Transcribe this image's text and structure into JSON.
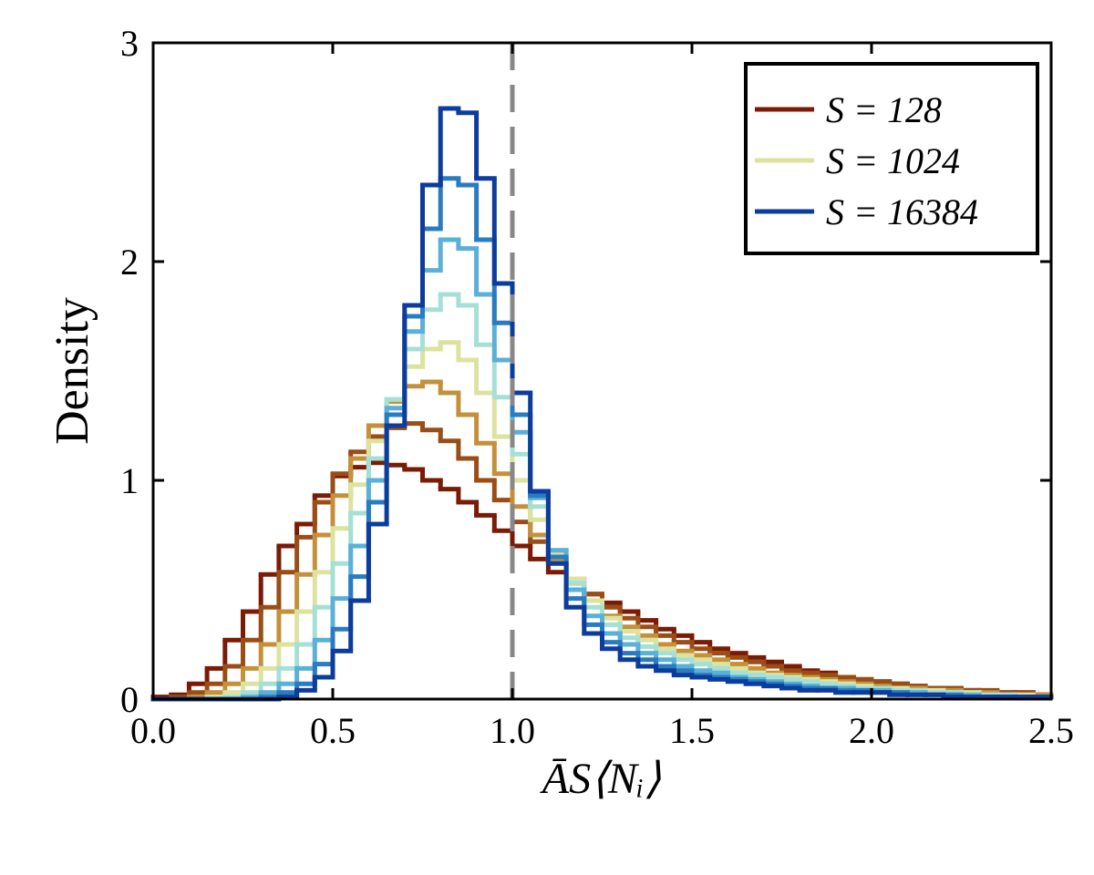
{
  "chart_data": {
    "type": "histogram",
    "xlabel": "ĀS⟨Nᵢ⟩",
    "ylabel": "Density",
    "xlim": [
      0,
      2.5
    ],
    "ylim": [
      0,
      3
    ],
    "xticks": [
      {
        "value": 0,
        "label": "0.0"
      },
      0.5,
      {
        "value": 1,
        "label": "1.0"
      },
      1.5,
      {
        "value": 2,
        "label": "2.0"
      },
      2.5
    ],
    "yticks": [
      0,
      1,
      2,
      3
    ],
    "vline": 1,
    "legend": "upper right",
    "bins": [
      0,
      0.05,
      0.1,
      0.15,
      0.2,
      0.25,
      0.3,
      0.35,
      0.4,
      0.45,
      0.5,
      0.55,
      0.6,
      0.65,
      0.7,
      0.75,
      0.8,
      0.85,
      0.9,
      0.95,
      1,
      1.05,
      1.1,
      1.15,
      1.2,
      1.25,
      1.3,
      1.35,
      1.4,
      1.45,
      1.5,
      1.55,
      1.6,
      1.65,
      1.7,
      1.75,
      1.8,
      1.85,
      1.9,
      1.95,
      2,
      2.05,
      2.1,
      2.15,
      2.2,
      2.25,
      2.3,
      2.35,
      2.4,
      2.45,
      2.5
    ],
    "series": [
      {
        "name": "S = 128",
        "color": "#7b1a05",
        "values": [
          0.01,
          0.02,
          0.07,
          0.14,
          0.27,
          0.4,
          0.57,
          0.7,
          0.8,
          0.93,
          1.02,
          1.06,
          1.08,
          1.07,
          1.05,
          1.0,
          0.96,
          0.9,
          0.84,
          0.77,
          0.7,
          0.64,
          0.58,
          0.53,
          0.48,
          0.44,
          0.4,
          0.36,
          0.32,
          0.29,
          0.26,
          0.23,
          0.21,
          0.19,
          0.17,
          0.15,
          0.13,
          0.12,
          0.1,
          0.09,
          0.08,
          0.07,
          0.06,
          0.05,
          0.05,
          0.04,
          0.03,
          0.03,
          0.03,
          0.02
        ]
      },
      {
        "color": "#9a4d17",
        "values": [
          0,
          0.01,
          0.03,
          0.07,
          0.15,
          0.27,
          0.42,
          0.58,
          0.74,
          0.9,
          1.03,
          1.13,
          1.2,
          1.24,
          1.26,
          1.23,
          1.18,
          1.1,
          1.0,
          0.91,
          0.81,
          0.72,
          0.63,
          0.55,
          0.48,
          0.42,
          0.37,
          0.33,
          0.29,
          0.26,
          0.23,
          0.21,
          0.19,
          0.17,
          0.15,
          0.13,
          0.12,
          0.11,
          0.1,
          0.09,
          0.08,
          0.07,
          0.06,
          0.05,
          0.05,
          0.04,
          0.04,
          0.03,
          0.03,
          0.02
        ]
      },
      {
        "color": "#c4913a",
        "values": [
          0,
          0,
          0.01,
          0.03,
          0.07,
          0.14,
          0.25,
          0.4,
          0.57,
          0.75,
          0.93,
          1.1,
          1.25,
          1.36,
          1.43,
          1.45,
          1.4,
          1.3,
          1.17,
          1.03,
          0.88,
          0.75,
          0.63,
          0.53,
          0.45,
          0.38,
          0.33,
          0.29,
          0.25,
          0.22,
          0.2,
          0.18,
          0.16,
          0.14,
          0.12,
          0.11,
          0.1,
          0.09,
          0.08,
          0.07,
          0.06,
          0.05,
          0.05,
          0.04,
          0.04,
          0.03,
          0.03,
          0.02,
          0.02,
          0.02
        ]
      },
      {
        "name": "S = 1024",
        "color": "#dde39f",
        "values": [
          0,
          0,
          0,
          0.01,
          0.03,
          0.07,
          0.14,
          0.25,
          0.4,
          0.58,
          0.78,
          0.98,
          1.18,
          1.37,
          1.52,
          1.6,
          1.63,
          1.55,
          1.4,
          1.2,
          1.0,
          0.82,
          0.67,
          0.55,
          0.45,
          0.37,
          0.31,
          0.27,
          0.23,
          0.2,
          0.18,
          0.16,
          0.14,
          0.12,
          0.11,
          0.1,
          0.09,
          0.08,
          0.07,
          0.06,
          0.05,
          0.05,
          0.04,
          0.04,
          0.03,
          0.03,
          0.02,
          0.02,
          0.02,
          0.01
        ]
      },
      {
        "color": "#a5e0d6",
        "values": [
          0,
          0,
          0,
          0,
          0.01,
          0.03,
          0.07,
          0.14,
          0.25,
          0.42,
          0.62,
          0.85,
          1.1,
          1.37,
          1.6,
          1.78,
          1.85,
          1.8,
          1.62,
          1.38,
          1.12,
          0.88,
          0.68,
          0.53,
          0.42,
          0.34,
          0.28,
          0.24,
          0.21,
          0.18,
          0.16,
          0.14,
          0.12,
          0.11,
          0.1,
          0.09,
          0.08,
          0.07,
          0.06,
          0.05,
          0.05,
          0.04,
          0.04,
          0.03,
          0.03,
          0.02,
          0.02,
          0.02,
          0.01,
          0.01
        ]
      },
      {
        "color": "#5ab0d6",
        "values": [
          0,
          0,
          0,
          0,
          0,
          0.01,
          0.03,
          0.07,
          0.14,
          0.27,
          0.46,
          0.7,
          1.0,
          1.33,
          1.68,
          1.96,
          2.1,
          2.06,
          1.85,
          1.55,
          1.22,
          0.92,
          0.68,
          0.5,
          0.38,
          0.3,
          0.25,
          0.21,
          0.18,
          0.15,
          0.13,
          0.12,
          0.1,
          0.09,
          0.08,
          0.07,
          0.06,
          0.05,
          0.05,
          0.04,
          0.04,
          0.03,
          0.03,
          0.02,
          0.02,
          0.02,
          0.01,
          0.01,
          0.01,
          0.01
        ]
      },
      {
        "color": "#2a7cc0",
        "values": [
          0,
          0,
          0,
          0,
          0,
          0,
          0.01,
          0.03,
          0.07,
          0.16,
          0.32,
          0.56,
          0.9,
          1.3,
          1.75,
          2.15,
          2.38,
          2.35,
          2.1,
          1.72,
          1.3,
          0.93,
          0.65,
          0.46,
          0.34,
          0.26,
          0.21,
          0.18,
          0.15,
          0.13,
          0.11,
          0.1,
          0.09,
          0.08,
          0.07,
          0.06,
          0.05,
          0.05,
          0.04,
          0.04,
          0.03,
          0.03,
          0.02,
          0.02,
          0.02,
          0.01,
          0.01,
          0.01,
          0.01,
          0.01
        ]
      },
      {
        "name": "S = 16384",
        "color": "#0c3c9c",
        "values": [
          0,
          0,
          0,
          0,
          0,
          0,
          0,
          0.01,
          0.04,
          0.1,
          0.22,
          0.45,
          0.8,
          1.25,
          1.8,
          2.35,
          2.7,
          2.68,
          2.38,
          1.9,
          1.4,
          0.95,
          0.62,
          0.42,
          0.3,
          0.23,
          0.18,
          0.15,
          0.13,
          0.11,
          0.1,
          0.09,
          0.08,
          0.07,
          0.06,
          0.05,
          0.04,
          0.04,
          0.03,
          0.03,
          0.03,
          0.02,
          0.02,
          0.02,
          0.01,
          0.01,
          0.01,
          0.01,
          0.01,
          0.01
        ]
      }
    ]
  }
}
